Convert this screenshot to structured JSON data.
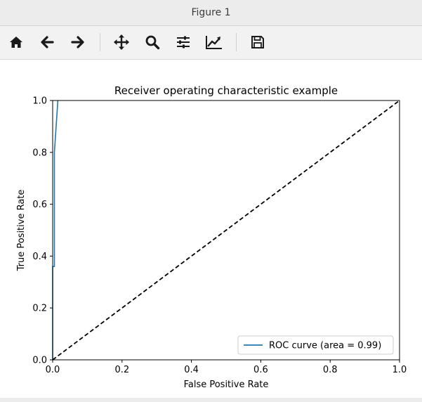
{
  "window": {
    "title": "Figure 1"
  },
  "toolbar": {
    "buttons": [
      {
        "icon": "home-icon",
        "label": "Home"
      },
      {
        "icon": "back-arrow-icon",
        "label": "Back"
      },
      {
        "icon": "forward-arrow-icon",
        "label": "Forward"
      },
      {
        "icon": "pan-icon",
        "label": "Pan"
      },
      {
        "icon": "zoom-icon",
        "label": "Zoom"
      },
      {
        "icon": "subplots-icon",
        "label": "Subplots"
      },
      {
        "icon": "edit-curves-icon",
        "label": "Customize"
      },
      {
        "icon": "save-icon",
        "label": "Save"
      }
    ]
  },
  "chart_data": {
    "type": "line",
    "title": "Receiver operating characteristic example",
    "xlabel": "False Positive Rate",
    "ylabel": "True Positive Rate",
    "xlim": [
      0.0,
      1.0
    ],
    "ylim": [
      0.0,
      1.0
    ],
    "xticks": [
      "0.0",
      "0.2",
      "0.4",
      "0.6",
      "0.8",
      "1.0"
    ],
    "yticks": [
      "0.0",
      "0.2",
      "0.4",
      "0.6",
      "0.8",
      "1.0"
    ],
    "grid": false,
    "legend_position": "bottom-right",
    "series": [
      {
        "name": "ROC curve (area = 0.99)",
        "color": "#1f77b4",
        "style": "solid",
        "x": [
          0.0,
          0.0,
          0.005,
          0.005,
          0.015
        ],
        "y": [
          0.0,
          0.36,
          0.36,
          0.8,
          1.0
        ]
      },
      {
        "color": "#000000",
        "style": "dashed",
        "x": [
          0.0,
          1.0
        ],
        "y": [
          0.0,
          1.0
        ]
      }
    ]
  }
}
